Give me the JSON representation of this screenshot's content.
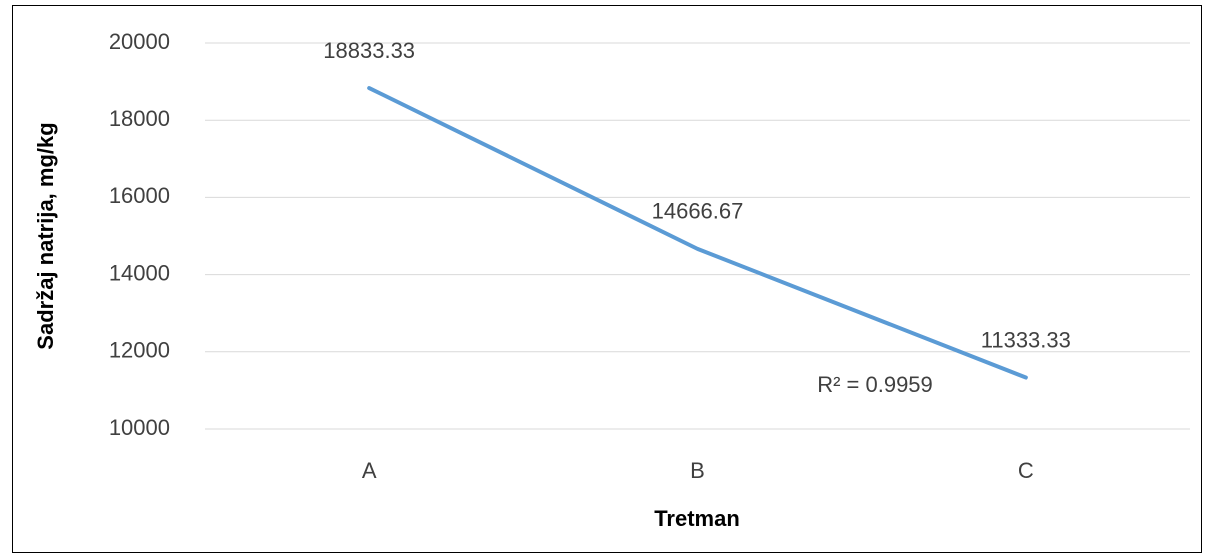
{
  "chart_data": {
    "type": "line",
    "categories": [
      "A",
      "B",
      "C"
    ],
    "values": [
      18833.33,
      14666.67,
      11333.33
    ],
    "color": "#5b9bd5",
    "ylim": [
      10000,
      20000
    ],
    "yticks": [
      10000,
      12000,
      14000,
      16000,
      18000,
      20000
    ],
    "grid": true,
    "xlabel": "Tretman",
    "ylabel": "Sadržaj natrija, mg/kg",
    "annotation": "R² = 0.9959"
  }
}
